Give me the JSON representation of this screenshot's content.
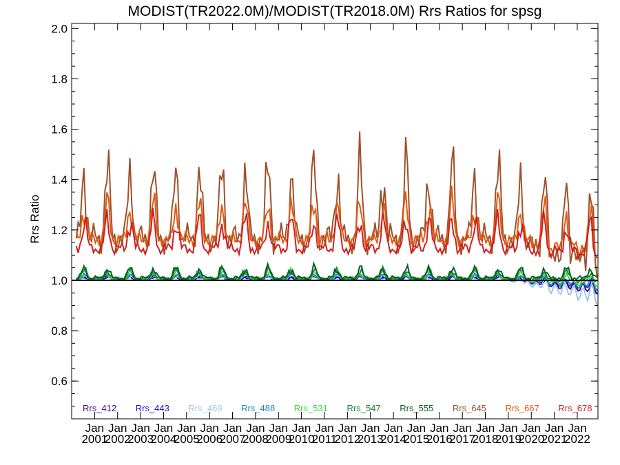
{
  "chart_data": {
    "type": "line",
    "title": "MODIST(TR2022.0M)/MODIST(TR2018.0M)  Rrs Ratios for spsg",
    "ylabel": "Rrs Ratio",
    "xlabel": "",
    "ylim": [
      0.45,
      2.02
    ],
    "yticks": [
      0.6,
      0.8,
      1.0,
      1.2,
      1.4,
      1.6,
      1.8,
      2.0
    ],
    "ytick_labels": [
      "0.6",
      "0.8",
      "1.0",
      "1.2",
      "1.4",
      "1.6",
      "1.8",
      "2.0"
    ],
    "xlim": [
      2000.0,
      2022.9
    ],
    "xticks": [
      2001,
      2002,
      2003,
      2004,
      2005,
      2006,
      2007,
      2008,
      2009,
      2010,
      2011,
      2012,
      2013,
      2014,
      2015,
      2016,
      2017,
      2018,
      2019,
      2020,
      2021,
      2022
    ],
    "xtick_labels_top": [
      "Jan",
      "Jan",
      "Jan",
      "Jan",
      "Jan",
      "Jan",
      "Jan",
      "Jan",
      "Jan",
      "Jan",
      "Jan",
      "Jan",
      "Jan",
      "Jan",
      "Jan",
      "Jan",
      "Jan",
      "Jan",
      "Jan",
      "Jan",
      "Jan",
      "Jan"
    ],
    "xtick_labels_bottom": [
      "2001",
      "2002",
      "2003",
      "2004",
      "2005",
      "2006",
      "2007",
      "2008",
      "2009",
      "2010",
      "2011",
      "2012",
      "2013",
      "2014",
      "2015",
      "2016",
      "2017",
      "2018",
      "2019",
      "2020",
      "2021",
      "2022"
    ],
    "reference_line": 1.0,
    "legend_position": "bottom inside",
    "legend": [
      {
        "name": "Rrs_412",
        "color": "#3a0a8c"
      },
      {
        "name": "Rrs_443",
        "color": "#1010d8"
      },
      {
        "name": "Rrs_469",
        "color": "#9ac8e6"
      },
      {
        "name": "Rrs_488",
        "color": "#2e7fc0"
      },
      {
        "name": "Rrs_531",
        "color": "#3ad43a"
      },
      {
        "name": "Rrs_547",
        "color": "#108a30"
      },
      {
        "name": "Rrs_555",
        "color": "#0a5e28"
      },
      {
        "name": "Rrs_645",
        "color": "#a0502a"
      },
      {
        "name": "Rrs_667",
        "color": "#e05a10"
      },
      {
        "name": "Rrs_678",
        "color": "#d21e1e"
      }
    ],
    "series": [
      {
        "name": "Rrs_412",
        "color": "#3a0a8c",
        "start_year": 2000.2,
        "low": 1.0,
        "high": 1.02,
        "decline": -0.04
      },
      {
        "name": "Rrs_443",
        "color": "#1010d8",
        "start_year": 2000.2,
        "low": 1.0,
        "high": 1.025,
        "decline": -0.03
      },
      {
        "name": "Rrs_469",
        "color": "#9ac8e6",
        "start_year": 2000.2,
        "low": 1.0,
        "high": 1.03,
        "decline": -0.07
      },
      {
        "name": "Rrs_488",
        "color": "#2e7fc0",
        "start_year": 2000.2,
        "low": 1.0,
        "high": 1.035,
        "decline": -0.03
      },
      {
        "name": "Rrs_531",
        "color": "#3ad43a",
        "start_year": 2000.2,
        "low": 1.0,
        "high": 1.05,
        "decline": -0.02
      },
      {
        "name": "Rrs_547",
        "color": "#108a30",
        "start_year": 2000.2,
        "low": 1.0,
        "high": 1.06,
        "decline": -0.01
      },
      {
        "name": "Rrs_555",
        "color": "#0a5e28",
        "start_year": 2000.2,
        "low": 1.0,
        "high": 1.07,
        "decline": 0.0
      },
      {
        "name": "Rrs_645",
        "color": "#a0502a",
        "start_year": 2000.2,
        "low": 1.1,
        "high": 1.6,
        "decline": -0.1
      },
      {
        "name": "Rrs_667",
        "color": "#e05a10",
        "start_year": 2000.2,
        "low": 1.13,
        "high": 1.38,
        "decline": -0.05
      },
      {
        "name": "Rrs_678",
        "color": "#d21e1e",
        "start_year": 2000.2,
        "low": 1.1,
        "high": 1.3,
        "decline": -0.02
      }
    ]
  }
}
